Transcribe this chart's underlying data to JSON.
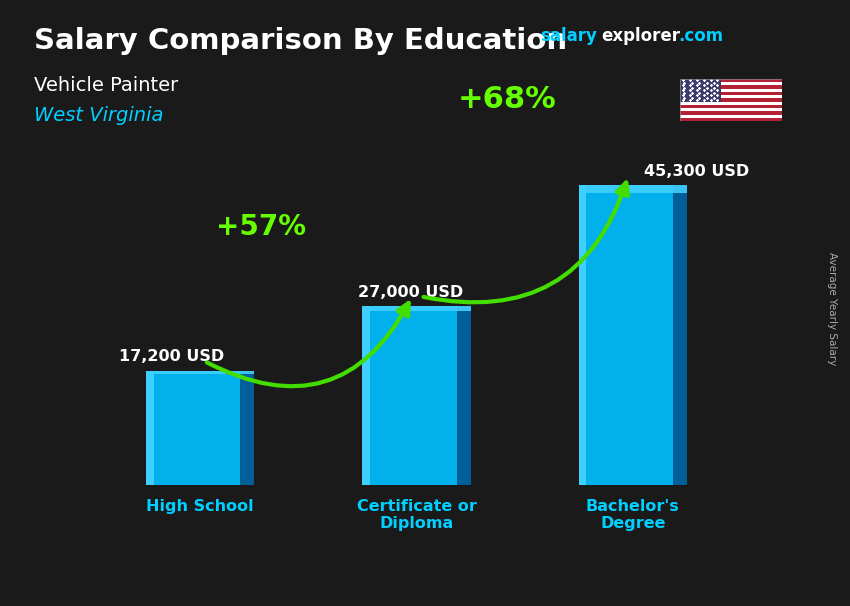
{
  "title": "Salary Comparison By Education",
  "subtitle_job": "Vehicle Painter",
  "subtitle_location": "West Virginia",
  "ylabel": "Average Yearly Salary",
  "categories": [
    "High School",
    "Certificate or\nDiploma",
    "Bachelor's\nDegree"
  ],
  "values": [
    17200,
    27000,
    45300
  ],
  "value_labels": [
    "17,200 USD",
    "27,000 USD",
    "45,300 USD"
  ],
  "pct_labels": [
    "+57%",
    "+68%"
  ],
  "bar_color_main": "#00bfff",
  "bar_color_light": "#40d0ff",
  "bar_color_dark": "#0090cc",
  "bar_color_side": "#005f99",
  "bg_color": "#1a1a1a",
  "title_color": "#ffffff",
  "subtitle_job_color": "#ffffff",
  "subtitle_location_color": "#00cfff",
  "value_label_color": "#ffffff",
  "pct_color": "#66ff00",
  "arrow_color": "#44dd00",
  "category_label_color": "#00cfff",
  "brand_salary_color": "#00cfff",
  "brand_explorer_color": "#ffffff",
  "brand_dotcom_color": "#00cfff",
  "ylabel_color": "#aaaaaa",
  "ylim": [
    0,
    55000
  ],
  "bar_width": 0.5,
  "figsize": [
    8.5,
    6.06
  ],
  "dpi": 100
}
